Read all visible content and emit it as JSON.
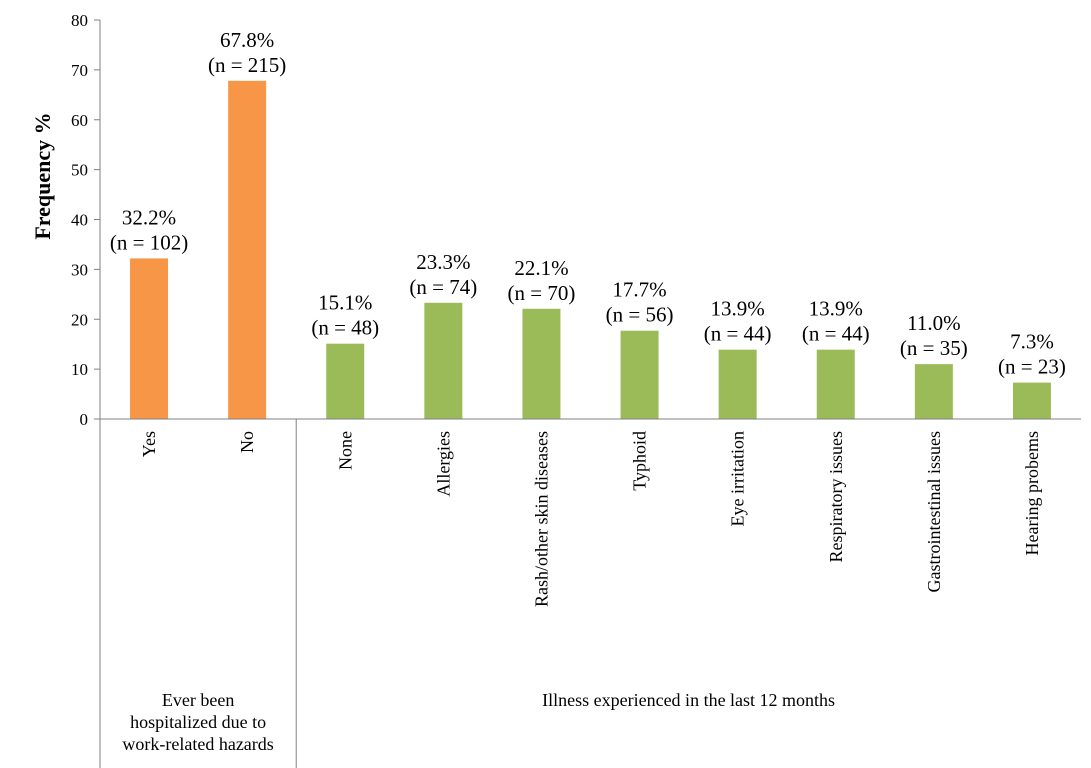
{
  "chart_data": {
    "type": "bar",
    "title": "",
    "ylabel": "Frequency %",
    "ylim": [
      0,
      80
    ],
    "yticks": [
      0,
      10,
      20,
      30,
      40,
      50,
      60,
      70,
      80
    ],
    "grid": false,
    "legend": "none",
    "groups": [
      {
        "label": "Ever been hospitalized due to work-related hazards",
        "label_lines": [
          "Ever been",
          "hospitalized due to",
          "work-related hazards"
        ],
        "color": "#F79646",
        "bars": [
          {
            "category": "Yes",
            "value": 32.2,
            "label_pct": "32.2%",
            "label_n": "(n = 102)"
          },
          {
            "category": "No",
            "value": 67.8,
            "label_pct": "67.8%",
            "label_n": "(n = 215)"
          }
        ]
      },
      {
        "label": "Illness experienced in the last 12 months",
        "label_lines": [
          "Illness experienced in the last 12 months"
        ],
        "color": "#9BBB59",
        "bars": [
          {
            "category": "None",
            "value": 15.1,
            "label_pct": "15.1%",
            "label_n": "(n = 48)"
          },
          {
            "category": "Allergies",
            "value": 23.3,
            "label_pct": "23.3%",
            "label_n": "(n = 74)"
          },
          {
            "category": "Rash/other skin diseases",
            "value": 22.1,
            "label_pct": "22.1%",
            "label_n": "(n = 70)"
          },
          {
            "category": "Typhoid",
            "value": 17.7,
            "label_pct": "17.7%",
            "label_n": "(n = 56)"
          },
          {
            "category": "Eye irritation",
            "value": 13.9,
            "label_pct": "13.9%",
            "label_n": "(n = 44)"
          },
          {
            "category": "Respiratory issues",
            "value": 13.9,
            "label_pct": "13.9%",
            "label_n": "(n = 44)"
          },
          {
            "category": "Gastrointestinal issues",
            "value": 11.0,
            "label_pct": "11.0%",
            "label_n": "(n = 35)"
          },
          {
            "category": "Hearing probems",
            "value": 7.3,
            "label_pct": "7.3%",
            "label_n": "(n = 23)"
          }
        ]
      }
    ]
  }
}
